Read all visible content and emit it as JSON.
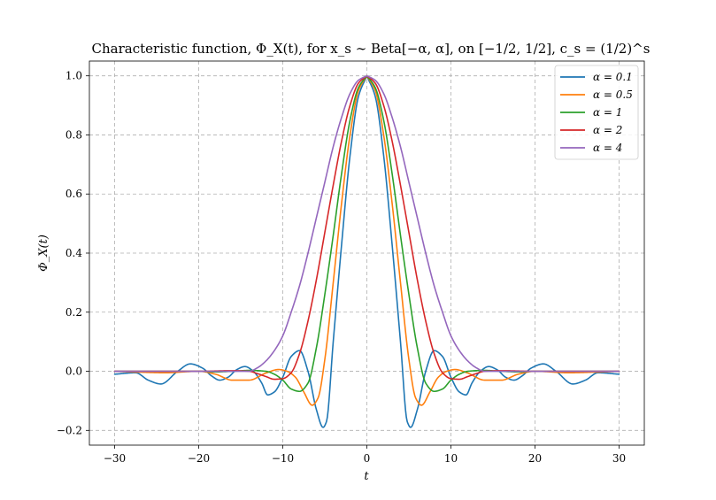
{
  "chart_data": {
    "type": "line",
    "title": "Characteristic function, Φ_X(t), for x_s ∼ Beta[−α, α], on [−1/2, 1/2], c_s = (1/2)^s",
    "xlabel": "t",
    "ylabel": "Φ_X(t)",
    "xlim": [
      -33,
      33
    ],
    "ylim": [
      -0.25,
      1.05
    ],
    "xticks": [
      -30,
      -20,
      -10,
      0,
      10,
      20,
      30
    ],
    "xtick_labels": [
      "−30",
      "−20",
      "−10",
      "0",
      "10",
      "20",
      "30"
    ],
    "yticks": [
      -0.2,
      0.0,
      0.2,
      0.4,
      0.6,
      0.8,
      1.0
    ],
    "ytick_labels": [
      "−0.2",
      "0.0",
      "0.2",
      "0.4",
      "0.6",
      "0.8",
      "1.0"
    ],
    "grid": true,
    "legend_position": "top-right",
    "t_range": [
      -30,
      30
    ],
    "series": [
      {
        "name": "α = 0.1",
        "color": "#1f77b4",
        "points": [
          [
            0,
            1.0
          ],
          [
            1,
            0.93
          ],
          [
            2,
            0.73
          ],
          [
            3,
            0.43
          ],
          [
            4,
            0.1
          ],
          [
            4.8,
            -0.17
          ],
          [
            5.2,
            -0.19
          ],
          [
            6,
            -0.13
          ],
          [
            7,
            0.0
          ],
          [
            8,
            0.07
          ],
          [
            9,
            0.05
          ],
          [
            10,
            -0.02
          ],
          [
            11,
            -0.07
          ],
          [
            11.8,
            -0.08
          ],
          [
            12.5,
            -0.04
          ],
          [
            13.5,
            0.0
          ],
          [
            14.5,
            0.016
          ],
          [
            15.5,
            0.005
          ],
          [
            16.5,
            -0.02
          ],
          [
            17.5,
            -0.03
          ],
          [
            18.5,
            -0.015
          ],
          [
            19.5,
            0.01
          ],
          [
            21,
            0.025
          ],
          [
            22.5,
            0.0
          ],
          [
            24.5,
            -0.043
          ],
          [
            26,
            -0.03
          ],
          [
            27.5,
            -0.005
          ],
          [
            30,
            -0.01
          ]
        ]
      },
      {
        "name": "α = 0.5",
        "color": "#ff7f0e",
        "points": [
          [
            0,
            1.0
          ],
          [
            1,
            0.95
          ],
          [
            2,
            0.8
          ],
          [
            3,
            0.57
          ],
          [
            4,
            0.3
          ],
          [
            5,
            0.04
          ],
          [
            5.8,
            -0.09
          ],
          [
            6.5,
            -0.115
          ],
          [
            7.5,
            -0.07
          ],
          [
            8.5,
            -0.02
          ],
          [
            9.5,
            0.0
          ],
          [
            10.5,
            0.006
          ],
          [
            12,
            -0.006
          ],
          [
            14,
            -0.03
          ],
          [
            16,
            -0.03
          ],
          [
            18,
            -0.01
          ],
          [
            20,
            0.0
          ],
          [
            24,
            -0.005
          ],
          [
            27,
            -0.003
          ],
          [
            30,
            0.0
          ]
        ]
      },
      {
        "name": "α = 1",
        "color": "#2ca02c",
        "points": [
          [
            0,
            1.0
          ],
          [
            1,
            0.96
          ],
          [
            2,
            0.85
          ],
          [
            3,
            0.67
          ],
          [
            4,
            0.46
          ],
          [
            5,
            0.26
          ],
          [
            6,
            0.08
          ],
          [
            7,
            -0.04
          ],
          [
            8,
            -0.068
          ],
          [
            9,
            -0.06
          ],
          [
            10,
            -0.03
          ],
          [
            11,
            -0.01
          ],
          [
            12,
            0.0
          ],
          [
            14,
            0.003
          ],
          [
            16,
            0.0
          ],
          [
            18,
            -0.002
          ],
          [
            20,
            0.0
          ],
          [
            25,
            0.0
          ],
          [
            30,
            0.0
          ]
        ]
      },
      {
        "name": "α = 2",
        "color": "#d62728",
        "points": [
          [
            0,
            1.0
          ],
          [
            1,
            0.975
          ],
          [
            2,
            0.9
          ],
          [
            3,
            0.78
          ],
          [
            4,
            0.63
          ],
          [
            5,
            0.47
          ],
          [
            6,
            0.31
          ],
          [
            7,
            0.17
          ],
          [
            8,
            0.06
          ],
          [
            9,
            -0.005
          ],
          [
            10,
            -0.025
          ],
          [
            11,
            -0.027
          ],
          [
            12,
            -0.018
          ],
          [
            13,
            -0.008
          ],
          [
            14,
            0.0
          ],
          [
            16,
            0.002
          ],
          [
            20,
            0.0
          ],
          [
            25,
            0.0
          ],
          [
            30,
            0.0
          ]
        ]
      },
      {
        "name": "α = 4",
        "color": "#9467bd",
        "points": [
          [
            0,
            1.0
          ],
          [
            1,
            0.985
          ],
          [
            2,
            0.94
          ],
          [
            3,
            0.86
          ],
          [
            4,
            0.76
          ],
          [
            5,
            0.64
          ],
          [
            6,
            0.52
          ],
          [
            7,
            0.4
          ],
          [
            8,
            0.29
          ],
          [
            9,
            0.2
          ],
          [
            10,
            0.12
          ],
          [
            11,
            0.07
          ],
          [
            12,
            0.035
          ],
          [
            13,
            0.012
          ],
          [
            14,
            0.0
          ],
          [
            15,
            0.0
          ],
          [
            20,
            0.0
          ],
          [
            25,
            0.0
          ],
          [
            30,
            0.0
          ]
        ]
      }
    ]
  }
}
